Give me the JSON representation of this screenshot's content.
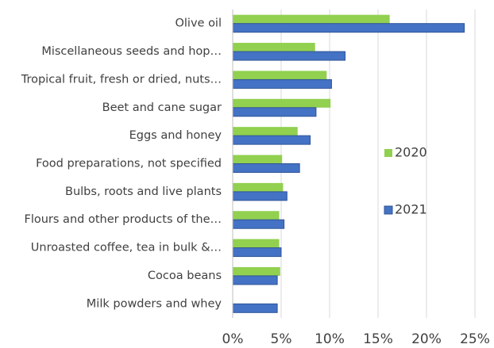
{
  "chart_data": {
    "type": "barh",
    "categories": [
      "Olive oil",
      "Miscellaneous seeds and hop…",
      "Tropical fruit, fresh or dried, nuts…",
      "Beet and cane sugar",
      "Eggs and honey",
      "Food preparations, not specified",
      "Bulbs, roots and live plants",
      "Flours and other products of the…",
      "Unroasted coffee, tea in bulk &…",
      "Cocoa beans",
      "Milk powders and whey"
    ],
    "series": [
      {
        "name": "2020",
        "color": "#92d050",
        "values": [
          16.2,
          8.5,
          9.7,
          10.1,
          6.7,
          5.1,
          5.2,
          4.8,
          4.8,
          4.9,
          0
        ]
      },
      {
        "name": "2021",
        "color": "#4472c4",
        "values": [
          23.9,
          11.6,
          10.2,
          8.6,
          8.0,
          6.9,
          5.6,
          5.3,
          5.0,
          4.6,
          4.6
        ]
      }
    ],
    "xlim": [
      0,
      25
    ],
    "xticks": [
      {
        "value": 0,
        "label": "0%"
      },
      {
        "value": 5,
        "label": "5%"
      },
      {
        "value": 10,
        "label": "10%"
      },
      {
        "value": 15,
        "label": "15%"
      },
      {
        "value": 20,
        "label": "20%"
      },
      {
        "value": 25,
        "label": "25%"
      }
    ],
    "grid": true,
    "legend": "right"
  }
}
